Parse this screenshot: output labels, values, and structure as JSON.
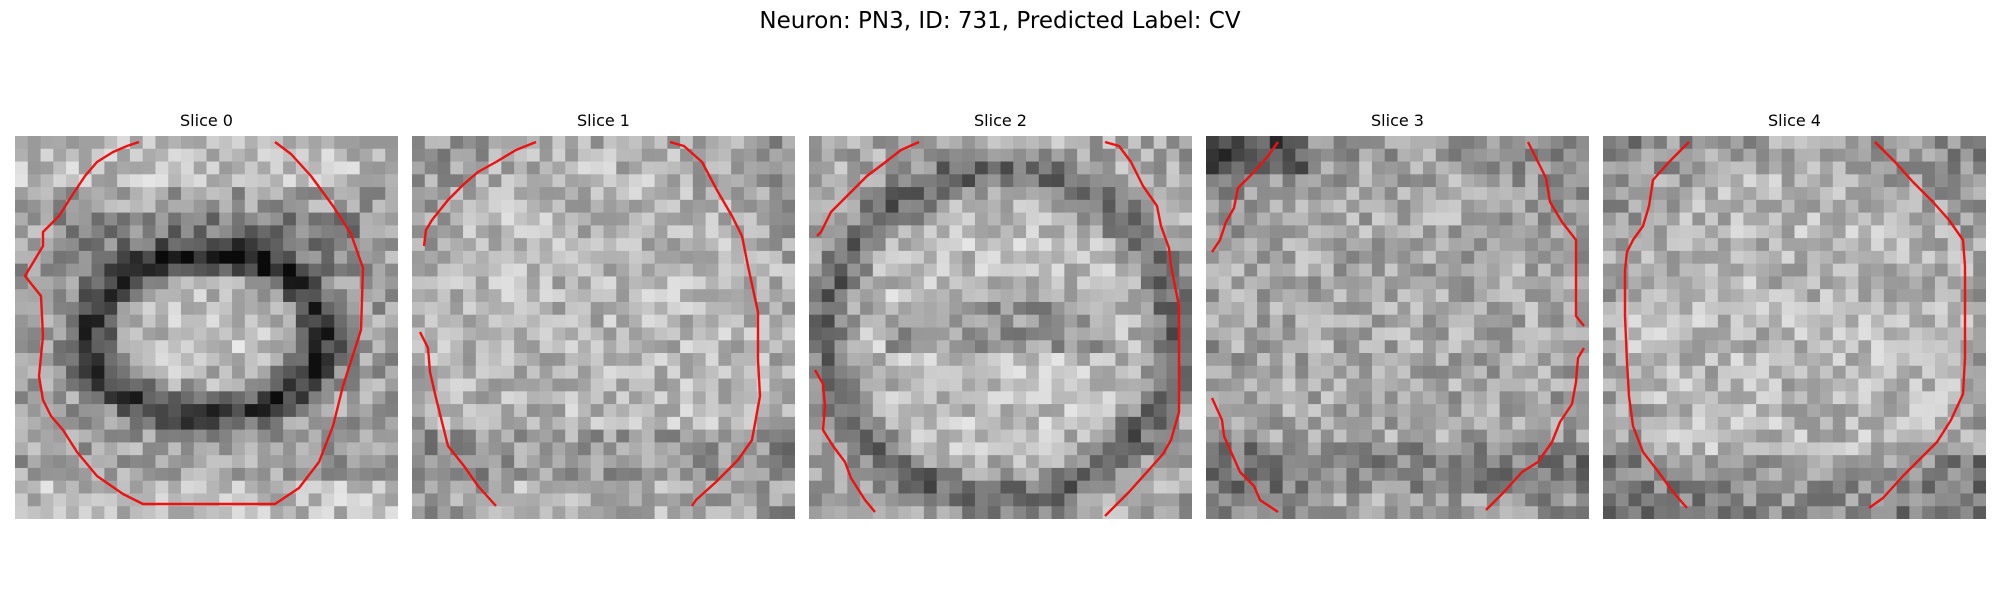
{
  "figure": {
    "title": "Neuron: PN3, ID: 731, Predicted Label: CV"
  },
  "panels": [
    {
      "title": "Slice 0",
      "pattern": "ring"
    },
    {
      "title": "Slice 1",
      "pattern": "bright"
    },
    {
      "title": "Slice 2",
      "pattern": "soft-ring"
    },
    {
      "title": "Slice 3",
      "pattern": "noisy"
    },
    {
      "title": "Slice 4",
      "pattern": "edge-dark"
    }
  ],
  "colors": {
    "contour": "#ee1111",
    "background": "#ffffff"
  }
}
